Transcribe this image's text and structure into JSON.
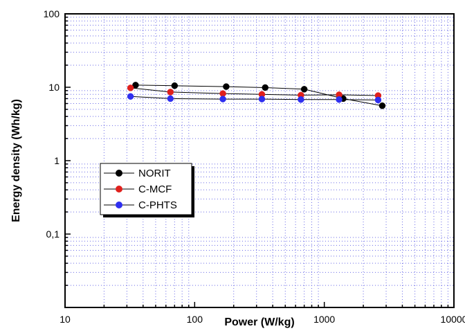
{
  "chart_data": {
    "type": "scatter",
    "xlabel": "Power (W/kg)",
    "ylabel": "Energy density (Wh/kg)",
    "x_scale": "log",
    "y_scale": "log",
    "xlim": [
      10,
      10000
    ],
    "ylim": [
      0.01,
      100
    ],
    "x_ticks": [
      {
        "value": 10,
        "label": "10"
      },
      {
        "value": 100,
        "label": "100"
      },
      {
        "value": 1000,
        "label": "1000"
      },
      {
        "value": 10000,
        "label": "10000"
      }
    ],
    "y_ticks": [
      {
        "value": 0.1,
        "label": "0,1"
      },
      {
        "value": 1,
        "label": "1"
      },
      {
        "value": 10,
        "label": "10"
      },
      {
        "value": 100,
        "label": "100"
      }
    ],
    "grid": true,
    "legend_position": "center-left",
    "series": [
      {
        "name": "NORIT",
        "color": "#000000",
        "points": [
          [
            35,
            10.7
          ],
          [
            70,
            10.5
          ],
          [
            175,
            10.2
          ],
          [
            350,
            9.9
          ],
          [
            700,
            9.4
          ],
          [
            1400,
            7.0
          ],
          [
            2800,
            5.6
          ]
        ]
      },
      {
        "name": "C-MCF",
        "color": "#e0201c",
        "points": [
          [
            32,
            9.8
          ],
          [
            65,
            8.6
          ],
          [
            165,
            8.2
          ],
          [
            330,
            8.0
          ],
          [
            660,
            7.8
          ],
          [
            1300,
            7.9
          ],
          [
            2600,
            7.7
          ]
        ]
      },
      {
        "name": "C-PHTS",
        "color": "#2f2ff0",
        "points": [
          [
            32,
            7.5
          ],
          [
            65,
            7.0
          ],
          [
            165,
            6.9
          ],
          [
            330,
            6.9
          ],
          [
            660,
            6.8
          ],
          [
            1300,
            6.8
          ],
          [
            2600,
            6.7
          ]
        ]
      }
    ]
  }
}
